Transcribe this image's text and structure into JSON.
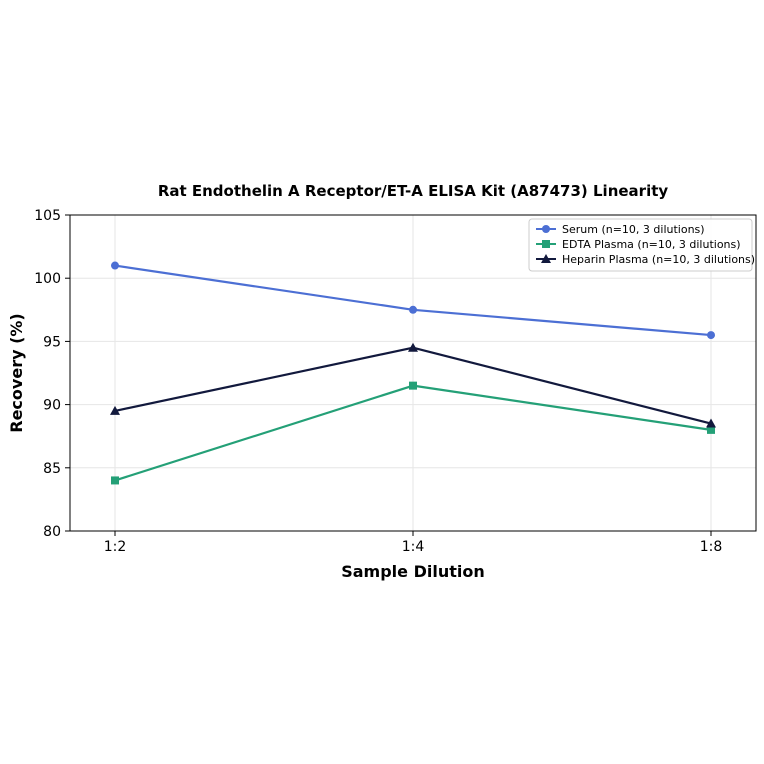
{
  "chart_data": {
    "type": "line",
    "title": "Rat Endothelin A Receptor/ET-A ELISA Kit (A87473) Linearity",
    "xlabel": "Sample Dilution",
    "ylabel": "Recovery (%)",
    "categories": [
      "1:2",
      "1:4",
      "1:8"
    ],
    "ylim": [
      80,
      105
    ],
    "yticks": [
      80,
      85,
      90,
      95,
      100,
      105
    ],
    "grid": true,
    "legend_position": "top-right",
    "series": [
      {
        "name": "Serum (n=10, 3 dilutions)",
        "values": [
          101.0,
          97.5,
          95.5
        ],
        "color": "#4c6fd4",
        "marker": "circle"
      },
      {
        "name": "EDTA Plasma (n=10, 3 dilutions)",
        "values": [
          84.0,
          91.5,
          88.0
        ],
        "color": "#24a077",
        "marker": "square"
      },
      {
        "name": "Heparin Plasma (n=10, 3 dilutions)",
        "values": [
          89.5,
          94.5,
          88.5
        ],
        "color": "#12193d",
        "marker": "triangle"
      }
    ]
  }
}
